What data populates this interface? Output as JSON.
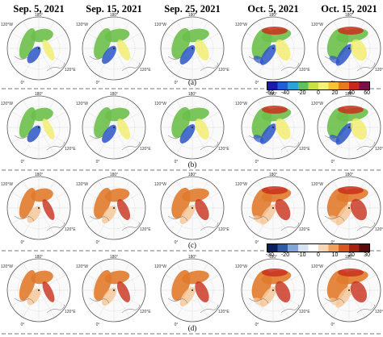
{
  "column_headers": [
    "Sep. 5, 2021",
    "Sep. 15, 2021",
    "Sep. 25, 2021",
    "Oct. 5, 2021",
    "Oct. 15, 2021"
  ],
  "panel_labels": [
    "(a)",
    "(b)",
    "(c)",
    "(d)"
  ],
  "map_labels": {
    "top": "180°",
    "left": "120°W",
    "right": "120°E",
    "bottom": "0°"
  },
  "colorbar_1": {
    "ticks": [
      "-60",
      "-40",
      "-20",
      "0",
      "20",
      "40",
      "60"
    ],
    "colors": [
      "#1a1aa8",
      "#1f5fd6",
      "#2aa3d8",
      "#5ec45a",
      "#c8e04a",
      "#f5f07a",
      "#f7c23a",
      "#e87a22",
      "#c42b1c",
      "#7a0f4a"
    ]
  },
  "colorbar_2": {
    "ticks": [
      "-30",
      "-20",
      "-10",
      "0",
      "10",
      "20",
      "30"
    ],
    "colors": [
      "#0b1f5e",
      "#2f5aa8",
      "#7fa6d6",
      "#d6e3f2",
      "#ffffff",
      "#f7d7b4",
      "#f0a05a",
      "#d9581e",
      "#a8230f",
      "#5a0a0a"
    ]
  },
  "colors": {
    "ice_green": "#6cbf4a",
    "ice_blue": "#2a56c8",
    "ice_yellow": "#f2ec6a",
    "ice_red": "#c8301c",
    "ice_orange": "#e07a2c",
    "light_orange": "#f5c89a",
    "land": "#f0f0f0"
  }
}
